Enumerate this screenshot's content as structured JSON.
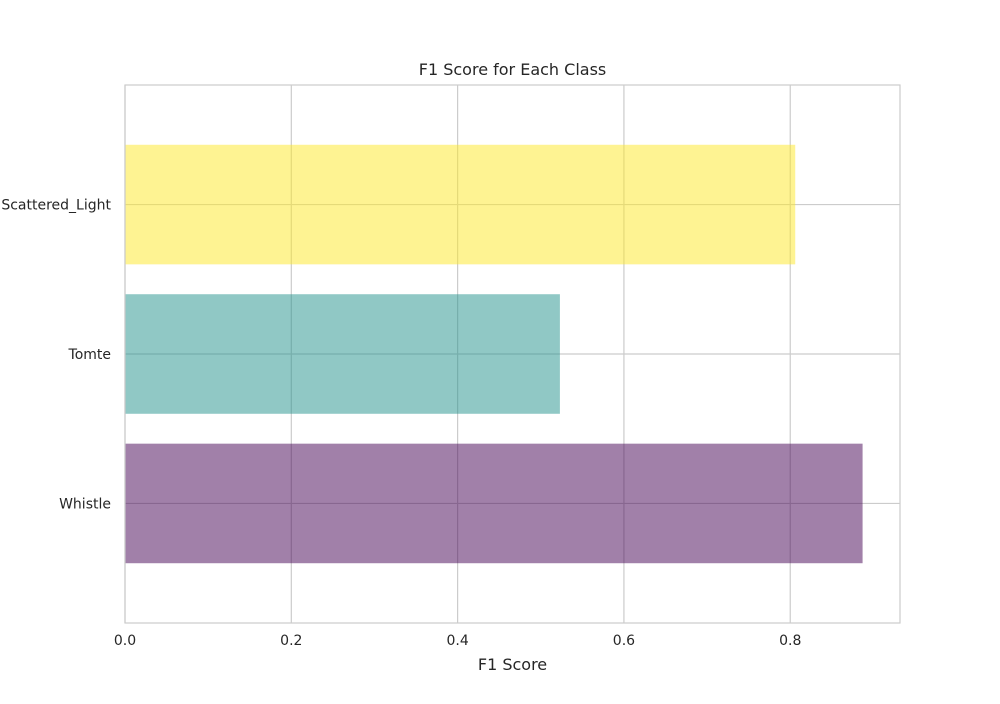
{
  "chart_data": {
    "type": "bar",
    "orientation": "horizontal",
    "title": "F1 Score for Each Class",
    "xlabel": "F1 Score",
    "ylabel": "",
    "categories": [
      "Whistle",
      "Tomte",
      "Scattered_Light"
    ],
    "values": [
      0.887,
      0.523,
      0.806
    ],
    "colors": [
      "#440154",
      "#21918c",
      "#fde725"
    ],
    "bar_opacity": 0.5,
    "xlim": [
      0,
      0.932
    ],
    "xticks": [
      0.0,
      0.2,
      0.4,
      0.6,
      0.8
    ],
    "xtick_labels": [
      "0.0",
      "0.2",
      "0.4",
      "0.6",
      "0.8"
    ],
    "grid": true,
    "legend": "none"
  }
}
